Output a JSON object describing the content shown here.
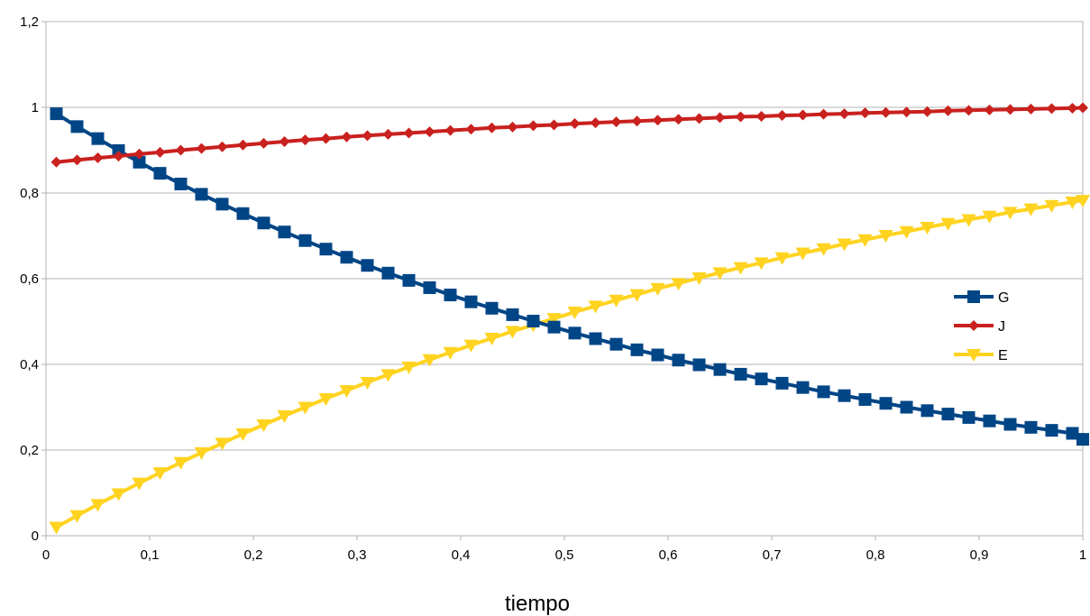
{
  "chart_data": {
    "type": "line",
    "title": "",
    "xlabel": "tiempo",
    "ylabel": "",
    "xlim": [
      0,
      1
    ],
    "ylim": [
      0,
      1.2
    ],
    "x_ticks": [
      "0",
      "0,1",
      "0,2",
      "0,3",
      "0,4",
      "0,5",
      "0,6",
      "0,7",
      "0,8",
      "0,9",
      "1"
    ],
    "y_ticks": [
      "0",
      "0,2",
      "0,4",
      "0,6",
      "0,8",
      "1",
      "1,2"
    ],
    "grid": "horizontal",
    "legend_position": "right",
    "x": [
      0.01,
      0.03,
      0.05,
      0.07,
      0.09,
      0.11,
      0.13,
      0.15,
      0.17,
      0.19,
      0.21,
      0.23,
      0.25,
      0.27,
      0.29,
      0.31,
      0.33,
      0.35,
      0.37,
      0.39,
      0.41,
      0.43,
      0.45,
      0.47,
      0.49,
      0.51,
      0.53,
      0.55,
      0.57,
      0.59,
      0.61,
      0.63,
      0.65,
      0.67,
      0.69,
      0.71,
      0.73,
      0.75,
      0.77,
      0.79,
      0.81,
      0.83,
      0.85,
      0.87,
      0.89,
      0.91,
      0.93,
      0.95,
      0.97,
      0.99,
      1.0
    ],
    "series": [
      {
        "name": "G",
        "color": "#004586",
        "marker": "square",
        "values": [
          0.985,
          0.955,
          0.927,
          0.899,
          0.872,
          0.846,
          0.821,
          0.797,
          0.774,
          0.752,
          0.73,
          0.709,
          0.689,
          0.669,
          0.65,
          0.631,
          0.613,
          0.596,
          0.579,
          0.562,
          0.546,
          0.531,
          0.516,
          0.501,
          0.487,
          0.473,
          0.46,
          0.447,
          0.434,
          0.422,
          0.41,
          0.399,
          0.388,
          0.377,
          0.366,
          0.356,
          0.346,
          0.336,
          0.327,
          0.318,
          0.309,
          0.3,
          0.292,
          0.284,
          0.276,
          0.268,
          0.26,
          0.253,
          0.246,
          0.239,
          0.225
        ]
      },
      {
        "name": "J",
        "color": "#c9211e",
        "marker": "diamond",
        "values": [
          0.872,
          0.877,
          0.882,
          0.886,
          0.891,
          0.895,
          0.9,
          0.904,
          0.908,
          0.912,
          0.916,
          0.92,
          0.924,
          0.927,
          0.931,
          0.934,
          0.937,
          0.94,
          0.943,
          0.946,
          0.949,
          0.952,
          0.954,
          0.957,
          0.959,
          0.962,
          0.964,
          0.966,
          0.968,
          0.97,
          0.972,
          0.974,
          0.976,
          0.978,
          0.979,
          0.981,
          0.982,
          0.984,
          0.985,
          0.987,
          0.988,
          0.989,
          0.99,
          0.992,
          0.993,
          0.994,
          0.995,
          0.996,
          0.997,
          0.998,
          0.999
        ]
      },
      {
        "name": "E",
        "color": "#ffd320",
        "marker": "triangle-down",
        "values": [
          0.02,
          0.047,
          0.073,
          0.098,
          0.123,
          0.147,
          0.171,
          0.194,
          0.216,
          0.238,
          0.259,
          0.28,
          0.3,
          0.32,
          0.339,
          0.358,
          0.376,
          0.394,
          0.411,
          0.428,
          0.445,
          0.461,
          0.477,
          0.492,
          0.507,
          0.522,
          0.536,
          0.55,
          0.563,
          0.577,
          0.589,
          0.602,
          0.614,
          0.626,
          0.637,
          0.649,
          0.66,
          0.67,
          0.681,
          0.691,
          0.701,
          0.71,
          0.72,
          0.729,
          0.738,
          0.746,
          0.755,
          0.763,
          0.771,
          0.779,
          0.783
        ]
      }
    ]
  }
}
